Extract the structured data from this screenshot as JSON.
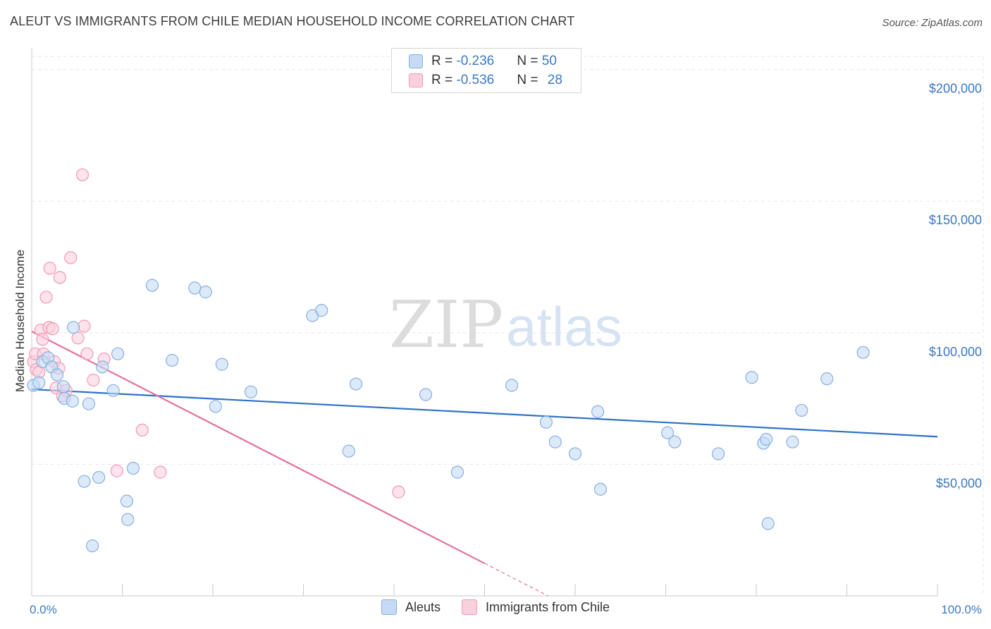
{
  "title": "ALEUT VS IMMIGRANTS FROM CHILE MEDIAN HOUSEHOLD INCOME CORRELATION CHART",
  "source": "Source: ZipAtlas.com",
  "watermark": {
    "zip": "ZIP",
    "atlas": "atlas"
  },
  "legend": {
    "rows": [
      {
        "r_label": "R = ",
        "r_value": "-0.236",
        "n_label": "N = ",
        "n_value": "50"
      },
      {
        "r_label": "R = ",
        "r_value": "-0.536",
        "n_label": "N = ",
        "n_value": "28"
      }
    ]
  },
  "colors": {
    "aleuts_fill": "#c5daf5",
    "aleuts_stroke": "#88b0e0",
    "aleuts_line": "#2f72c8",
    "chile_fill": "#fbd0dd",
    "chile_stroke": "#f09ab4",
    "chile_line": "#e4709a",
    "grid": "#e6e6e6",
    "tick_text": "#3b78c4"
  },
  "chart_data": {
    "type": "scatter",
    "title": "ALEUT VS IMMIGRANTS FROM CHILE MEDIAN HOUSEHOLD INCOME CORRELATION CHART",
    "xlabel": "",
    "ylabel": "Median Household Income",
    "xlim": [
      0,
      100
    ],
    "ylim": [
      0,
      205000
    ],
    "y_ticks": [
      50000,
      100000,
      150000,
      200000
    ],
    "y_tick_labels": [
      "$50,000",
      "$100,000",
      "$150,000",
      "$200,000"
    ],
    "x_tick_labels": [
      "0.0%",
      "100.0%"
    ],
    "series": [
      {
        "name": "Aleuts",
        "r": -0.236,
        "n": 50,
        "trend": {
          "x0": 0,
          "y0": 78500,
          "x1": 100,
          "y1": 60500,
          "dashed_from": null
        },
        "points": [
          [
            0.2,
            80000
          ],
          [
            0.8,
            81000
          ],
          [
            1.2,
            89000
          ],
          [
            1.8,
            90500
          ],
          [
            2.2,
            87000
          ],
          [
            2.8,
            84000
          ],
          [
            3.5,
            79500
          ],
          [
            3.6,
            75000
          ],
          [
            4.5,
            74000
          ],
          [
            4.6,
            102000
          ],
          [
            5.8,
            43500
          ],
          [
            6.3,
            73000
          ],
          [
            6.7,
            19000
          ],
          [
            7.4,
            45000
          ],
          [
            7.8,
            87000
          ],
          [
            9.0,
            78000
          ],
          [
            9.5,
            92000
          ],
          [
            10.5,
            36000
          ],
          [
            10.6,
            29000
          ],
          [
            11.2,
            48500
          ],
          [
            13.3,
            118000
          ],
          [
            15.5,
            89500
          ],
          [
            18.0,
            117000
          ],
          [
            19.2,
            115500
          ],
          [
            20.3,
            72000
          ],
          [
            21.0,
            88000
          ],
          [
            24.2,
            77500
          ],
          [
            31.0,
            106500
          ],
          [
            32.0,
            108500
          ],
          [
            35.0,
            55000
          ],
          [
            35.8,
            80500
          ],
          [
            43.5,
            76500
          ],
          [
            47.0,
            47000
          ],
          [
            53.0,
            80000
          ],
          [
            56.8,
            66000
          ],
          [
            57.8,
            58500
          ],
          [
            60.0,
            54000
          ],
          [
            62.5,
            70000
          ],
          [
            62.8,
            40500
          ],
          [
            70.2,
            62000
          ],
          [
            71.0,
            58500
          ],
          [
            75.8,
            54000
          ],
          [
            79.5,
            83000
          ],
          [
            80.8,
            58000
          ],
          [
            81.1,
            59500
          ],
          [
            81.3,
            27500
          ],
          [
            84.0,
            58500
          ],
          [
            85.0,
            70500
          ],
          [
            87.8,
            82500
          ],
          [
            91.8,
            92500
          ]
        ]
      },
      {
        "name": "Immigrants from Chile",
        "r": -0.536,
        "n": 28,
        "trend": {
          "x0": 0,
          "y0": 100500,
          "x1": 57,
          "y1": 0,
          "dashed_from": 50
        },
        "points": [
          [
            0.2,
            89000
          ],
          [
            0.4,
            92000
          ],
          [
            0.5,
            86000
          ],
          [
            0.8,
            85000
          ],
          [
            1.0,
            101000
          ],
          [
            1.2,
            97500
          ],
          [
            1.3,
            92000
          ],
          [
            1.6,
            113500
          ],
          [
            1.9,
            102000
          ],
          [
            2.0,
            124500
          ],
          [
            2.3,
            101500
          ],
          [
            2.5,
            89000
          ],
          [
            2.7,
            79000
          ],
          [
            3.0,
            86500
          ],
          [
            3.1,
            121000
          ],
          [
            3.4,
            76000
          ],
          [
            3.8,
            78000
          ],
          [
            4.3,
            128500
          ],
          [
            5.1,
            98000
          ],
          [
            5.6,
            160000
          ],
          [
            5.8,
            102500
          ],
          [
            6.1,
            92000
          ],
          [
            6.8,
            82000
          ],
          [
            8.0,
            90000
          ],
          [
            9.4,
            47500
          ],
          [
            12.2,
            63000
          ],
          [
            14.2,
            47000
          ],
          [
            40.5,
            39500
          ]
        ]
      }
    ]
  },
  "bottom_legend": {
    "aleuts": "Aleuts",
    "chile": "Immigrants from Chile"
  }
}
